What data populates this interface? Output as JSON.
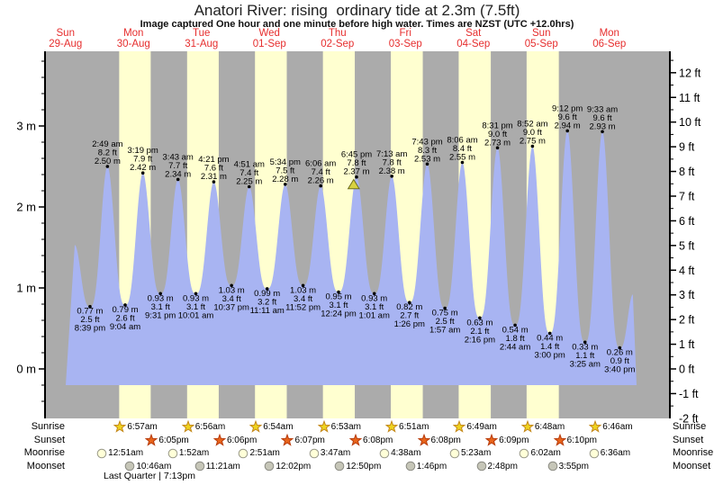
{
  "title": "Anatori River: rising  ordinary tide at 2.3m (7.5ft)",
  "subtitle": "Image captured One hour and one minute before high water. Times are NZST (UTC +12.0hrs)",
  "days": [
    {
      "name": "Sun",
      "date": "29-Aug"
    },
    {
      "name": "Mon",
      "date": "30-Aug"
    },
    {
      "name": "Tue",
      "date": "31-Aug"
    },
    {
      "name": "Wed",
      "date": "01-Sep"
    },
    {
      "name": "Thu",
      "date": "02-Sep"
    },
    {
      "name": "Fri",
      "date": "03-Sep"
    },
    {
      "name": "Sat",
      "date": "04-Sep"
    },
    {
      "name": "Sun",
      "date": "05-Sep"
    },
    {
      "name": "Mon",
      "date": "06-Sep"
    }
  ],
  "chart_data": {
    "type": "area",
    "title": "Anatori River: rising  ordinary tide at 2.3m (7.5ft)",
    "y_axis_left": {
      "unit": "m",
      "ticks": [
        "0 m",
        "1 m",
        "2 m",
        "3 m"
      ]
    },
    "y_axis_right": {
      "unit": "ft",
      "ticks": [
        "-2 ft",
        "-1 ft",
        "0 ft",
        "1 ft",
        "2 ft",
        "3 ft",
        "4 ft",
        "5 ft",
        "6 ft",
        "7 ft",
        "8 ft",
        "9 ft",
        "10 ft",
        "11 ft",
        "12 ft"
      ]
    },
    "tides": [
      {
        "day": 0,
        "type": "low",
        "time": "8:39 pm",
        "m": "0.77",
        "ft": "2.5"
      },
      {
        "day": 1,
        "type": "high",
        "time": "2:49 am",
        "m": "2.50",
        "ft": "8.2"
      },
      {
        "day": 1,
        "type": "low",
        "time": "9:04 am",
        "m": "0.79",
        "ft": "2.6"
      },
      {
        "day": 1,
        "type": "high",
        "time": "3:19 pm",
        "m": "2.42",
        "ft": "7.9"
      },
      {
        "day": 1,
        "type": "low",
        "time": "9:31 pm",
        "m": "0.93",
        "ft": "3.1"
      },
      {
        "day": 2,
        "type": "high",
        "time": "3:43 am",
        "m": "2.34",
        "ft": "7.7"
      },
      {
        "day": 2,
        "type": "low",
        "time": "10:01 am",
        "m": "0.93",
        "ft": "3.1"
      },
      {
        "day": 2,
        "type": "high",
        "time": "4:21 pm",
        "m": "2.31",
        "ft": "7.6"
      },
      {
        "day": 2,
        "type": "low",
        "time": "10:37 pm",
        "m": "1.03",
        "ft": "3.4"
      },
      {
        "day": 3,
        "type": "high",
        "time": "4:51 am",
        "m": "2.25",
        "ft": "7.4"
      },
      {
        "day": 3,
        "type": "low",
        "time": "11:11 am",
        "m": "0.99",
        "ft": "3.2"
      },
      {
        "day": 3,
        "type": "high",
        "time": "5:34 pm",
        "m": "2.28",
        "ft": "7.5"
      },
      {
        "day": 3,
        "type": "low",
        "time": "11:52 pm",
        "m": "1.03",
        "ft": "3.4"
      },
      {
        "day": 4,
        "type": "high",
        "time": "6:06 am",
        "m": "2.26",
        "ft": "7.4"
      },
      {
        "day": 4,
        "type": "low",
        "time": "12:24 pm",
        "m": "0.95",
        "ft": "3.1"
      },
      {
        "day": 4,
        "type": "high",
        "time": "6:45 pm",
        "m": "2.37",
        "ft": "7.8"
      },
      {
        "day": 5,
        "type": "low",
        "time": "1:01 am",
        "m": "0.93",
        "ft": "3.1"
      },
      {
        "day": 5,
        "type": "high",
        "time": "7:13 am",
        "m": "2.38",
        "ft": "7.8"
      },
      {
        "day": 5,
        "type": "low",
        "time": "1:26 pm",
        "m": "0.82",
        "ft": "2.7"
      },
      {
        "day": 5,
        "type": "high",
        "time": "7:43 pm",
        "m": "2.53",
        "ft": "8.3"
      },
      {
        "day": 6,
        "type": "low",
        "time": "1:57 am",
        "m": "0.75",
        "ft": "2.5"
      },
      {
        "day": 6,
        "type": "high",
        "time": "8:06 am",
        "m": "2.55",
        "ft": "8.4"
      },
      {
        "day": 6,
        "type": "low",
        "time": "2:16 pm",
        "m": "0.63",
        "ft": "2.1"
      },
      {
        "day": 6,
        "type": "high",
        "time": "8:31 pm",
        "m": "2.73",
        "ft": "9.0"
      },
      {
        "day": 7,
        "type": "low",
        "time": "2:44 am",
        "m": "0.54",
        "ft": "1.8"
      },
      {
        "day": 7,
        "type": "high",
        "time": "8:52 am",
        "m": "2.75",
        "ft": "9.0"
      },
      {
        "day": 7,
        "type": "low",
        "time": "3:00 pm",
        "m": "0.44",
        "ft": "1.4"
      },
      {
        "day": 7,
        "type": "high",
        "time": "9:12 pm",
        "m": "2.94",
        "ft": "9.6"
      },
      {
        "day": 8,
        "type": "low",
        "time": "3:25 am",
        "m": "0.33",
        "ft": "1.1"
      },
      {
        "day": 8,
        "type": "high",
        "time": "9:33 am",
        "m": "2.93",
        "ft": "9.6"
      },
      {
        "day": 8,
        "type": "low",
        "time": "3:40 pm",
        "m": "0.26",
        "ft": "0.9"
      }
    ],
    "curve_edges": {
      "start": {
        "day": 0,
        "hour": 15.26,
        "height_m": 1.53
      },
      "end": {
        "day": 8,
        "hour": 20.3,
        "height_m": 0.92
      }
    },
    "now_marker": {
      "day": 4,
      "time": "5:44 pm"
    }
  },
  "almanac": {
    "rows": [
      {
        "id": "sunrise",
        "label": "Sunrise",
        "icon": "sunrise-star-icon",
        "events": [
          {
            "day": 1,
            "time": "6:57am"
          },
          {
            "day": 2,
            "time": "6:56am"
          },
          {
            "day": 3,
            "time": "6:54am"
          },
          {
            "day": 4,
            "time": "6:53am"
          },
          {
            "day": 5,
            "time": "6:51am"
          },
          {
            "day": 6,
            "time": "6:49am"
          },
          {
            "day": 7,
            "time": "6:48am"
          },
          {
            "day": 8,
            "time": "6:46am"
          }
        ]
      },
      {
        "id": "sunset",
        "label": "Sunset",
        "icon": "sunset-star-icon",
        "events": [
          {
            "day": 1,
            "time": "6:05pm"
          },
          {
            "day": 2,
            "time": "6:06pm"
          },
          {
            "day": 3,
            "time": "6:07pm"
          },
          {
            "day": 4,
            "time": "6:08pm"
          },
          {
            "day": 5,
            "time": "6:08pm"
          },
          {
            "day": 6,
            "time": "6:09pm"
          },
          {
            "day": 7,
            "time": "6:10pm"
          }
        ]
      },
      {
        "id": "moonrise",
        "label": "Moonrise",
        "icon": "moonrise-circle-icon",
        "events": [
          {
            "day": 1,
            "time": "12:51am"
          },
          {
            "day": 2,
            "time": "1:52am"
          },
          {
            "day": 3,
            "time": "2:51am"
          },
          {
            "day": 4,
            "time": "3:47am"
          },
          {
            "day": 5,
            "time": "4:38am"
          },
          {
            "day": 6,
            "time": "5:23am"
          },
          {
            "day": 7,
            "time": "6:02am"
          },
          {
            "day": 8,
            "time": "6:36am"
          }
        ]
      },
      {
        "id": "moonset",
        "label": "Moonset",
        "icon": "moonset-circle-icon",
        "events": [
          {
            "day": 1,
            "time": "10:46am"
          },
          {
            "day": 2,
            "time": "11:21am"
          },
          {
            "day": 3,
            "time": "12:02pm"
          },
          {
            "day": 4,
            "time": "12:50pm"
          },
          {
            "day": 5,
            "time": "1:46pm"
          },
          {
            "day": 6,
            "time": "2:48pm"
          },
          {
            "day": 7,
            "time": "3:55pm"
          }
        ]
      }
    ],
    "moon_phase": "Last Quarter | 7:13pm"
  },
  "colors": {
    "night_band": "#ababab",
    "day_band": "#ffffd0",
    "tide_fill": "#a8b4f2",
    "day_label": "#e62e2e",
    "axis": "#000000",
    "annotation": "#000000",
    "now_marker_fill": "#d8d240",
    "now_marker_stroke": "#6e6e1e",
    "sunrise_fill": "#eed31f",
    "sunrise_stroke": "#c4881a",
    "sunset_fill": "#e8641a",
    "sunset_stroke": "#b83c0c",
    "moonrise_fill": "#ffffd8",
    "moonrise_stroke": "#9a9a8a",
    "moonset_fill": "#c6c6b8",
    "moonset_stroke": "#8c8c84"
  }
}
